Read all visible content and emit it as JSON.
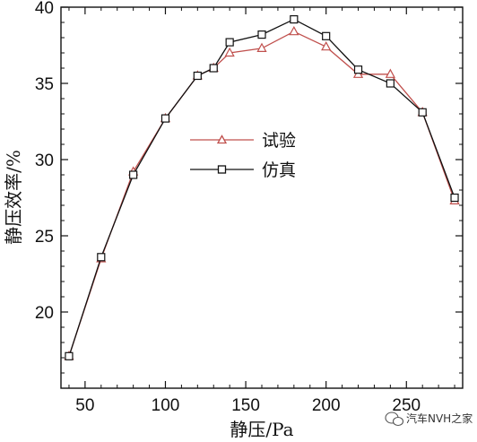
{
  "chart_data": {
    "type": "line",
    "xlabel": "静压/Pa",
    "ylabel": "静压效率/%",
    "xlim": [
      35,
      285
    ],
    "ylim": [
      15,
      40
    ],
    "xticks": [
      50,
      100,
      150,
      200,
      250
    ],
    "yticks": [
      20,
      25,
      30,
      35,
      40
    ],
    "x": [
      40,
      60,
      80,
      100,
      120,
      130,
      140,
      160,
      180,
      200,
      220,
      240,
      260,
      280
    ],
    "series": [
      {
        "name": "试验",
        "color": "#c0504d",
        "marker": "triangle",
        "values": [
          17.1,
          23.5,
          29.2,
          32.7,
          35.5,
          36.0,
          37.0,
          37.3,
          38.4,
          37.4,
          35.6,
          35.6,
          33.1,
          27.3
        ]
      },
      {
        "name": "仿真",
        "color": "#111111",
        "marker": "square",
        "values": [
          17.1,
          23.6,
          29.0,
          32.7,
          35.5,
          36.0,
          37.7,
          38.2,
          39.2,
          38.1,
          35.9,
          35.0,
          33.1,
          27.5
        ]
      }
    ],
    "legend_position": "left-middle",
    "grid": false
  },
  "watermark": {
    "text": "汽车NVH之家",
    "icon": "wechat-icon"
  }
}
